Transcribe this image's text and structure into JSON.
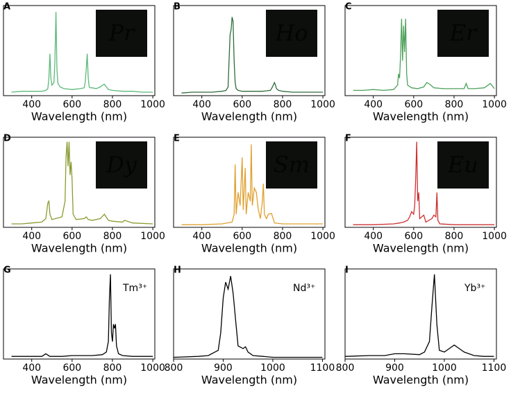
{
  "chart_data": [
    {
      "type": "line",
      "panel_label": "A",
      "inset_label": "Pr",
      "xlabel": "Wavelength (nm)",
      "color": "#5cb87a",
      "xlim": [
        260,
        1010
      ],
      "xticks": [
        400,
        600,
        800,
        1000
      ],
      "ylim": [
        0,
        100
      ],
      "x": [
        300,
        350,
        400,
        450,
        470,
        480,
        485,
        490,
        495,
        500,
        510,
        515,
        520,
        525,
        530,
        540,
        560,
        600,
        640,
        660,
        665,
        670,
        675,
        680,
        685,
        690,
        700,
        720,
        740,
        750,
        760,
        770,
        780,
        800,
        850,
        900,
        950,
        1000
      ],
      "values": [
        4,
        5,
        5,
        5,
        6,
        8,
        20,
        48,
        20,
        12,
        15,
        40,
        96,
        30,
        14,
        10,
        8,
        7,
        8,
        9,
        15,
        30,
        48,
        20,
        10,
        9,
        9,
        8,
        10,
        12,
        13,
        10,
        7,
        6,
        5,
        5,
        4,
        4
      ]
    },
    {
      "type": "line",
      "panel_label": "B",
      "inset_label": "Ho",
      "xlabel": "Wavelength (nm)",
      "color": "#2e6b3a",
      "xlim": [
        260,
        1010
      ],
      "xticks": [
        400,
        600,
        800,
        1000
      ],
      "ylim": [
        0,
        100
      ],
      "x": [
        300,
        350,
        400,
        450,
        500,
        520,
        530,
        535,
        540,
        545,
        550,
        555,
        560,
        565,
        570,
        580,
        600,
        650,
        700,
        740,
        750,
        760,
        765,
        770,
        780,
        800,
        850,
        900,
        950,
        1000
      ],
      "values": [
        3,
        4,
        4,
        4,
        5,
        6,
        10,
        40,
        70,
        75,
        90,
        85,
        40,
        15,
        8,
        6,
        5,
        5,
        5,
        6,
        10,
        15,
        12,
        8,
        6,
        5,
        4,
        4,
        4,
        4
      ]
    },
    {
      "type": "line",
      "panel_label": "C",
      "inset_label": "Er",
      "xlabel": "Wavelength (nm)",
      "color": "#4ca05a",
      "xlim": [
        260,
        1010
      ],
      "xticks": [
        400,
        600,
        800,
        1000
      ],
      "ylim": [
        0,
        100
      ],
      "x": [
        300,
        350,
        400,
        450,
        500,
        520,
        525,
        530,
        535,
        540,
        545,
        550,
        555,
        560,
        565,
        570,
        590,
        620,
        650,
        665,
        680,
        700,
        750,
        800,
        850,
        860,
        870,
        900,
        950,
        980,
        1000
      ],
      "values": [
        6,
        6,
        7,
        6,
        7,
        12,
        25,
        20,
        45,
        88,
        40,
        80,
        50,
        88,
        25,
        12,
        9,
        8,
        10,
        15,
        13,
        9,
        8,
        8,
        8,
        14,
        8,
        8,
        9,
        14,
        8
      ]
    },
    {
      "type": "line",
      "panel_label": "D",
      "inset_label": "Dy",
      "xlabel": "Wavelength (nm)",
      "color": "#8a9a30",
      "xlim": [
        260,
        1010
      ],
      "xticks": [
        400,
        600,
        800,
        1000
      ],
      "ylim": [
        0,
        100
      ],
      "x": [
        300,
        350,
        400,
        450,
        470,
        480,
        485,
        490,
        500,
        550,
        565,
        570,
        575,
        580,
        585,
        590,
        595,
        600,
        605,
        620,
        660,
        670,
        680,
        700,
        740,
        760,
        780,
        800,
        850,
        860,
        900,
        1000
      ],
      "values": [
        4,
        4,
        5,
        6,
        10,
        28,
        30,
        15,
        9,
        12,
        30,
        80,
        98,
        70,
        98,
        60,
        75,
        55,
        15,
        9,
        10,
        12,
        9,
        8,
        10,
        15,
        8,
        7,
        6,
        8,
        5,
        4
      ]
    },
    {
      "type": "line",
      "panel_label": "E",
      "inset_label": "Sm",
      "xlabel": "Wavelength (nm)",
      "color": "#e0a030",
      "xlim": [
        260,
        1010
      ],
      "xticks": [
        400,
        600,
        800,
        1000
      ],
      "ylim": [
        0,
        100
      ],
      "x": [
        300,
        400,
        500,
        550,
        560,
        565,
        570,
        580,
        590,
        600,
        605,
        615,
        620,
        630,
        640,
        645,
        650,
        660,
        670,
        680,
        690,
        700,
        705,
        710,
        720,
        730,
        745,
        760,
        800,
        900,
        1000
      ],
      "values": [
        3,
        3,
        4,
        6,
        15,
        72,
        15,
        40,
        25,
        80,
        20,
        68,
        15,
        40,
        30,
        95,
        25,
        45,
        40,
        20,
        10,
        30,
        50,
        15,
        10,
        15,
        16,
        5,
        4,
        4,
        4
      ]
    },
    {
      "type": "line",
      "panel_label": "F",
      "inset_label": "Eu",
      "xlabel": "Wavelength (nm)",
      "color": "#cc3030",
      "xlim": [
        260,
        1010
      ],
      "xticks": [
        400,
        600,
        800,
        1000
      ],
      "ylim": [
        0,
        100
      ],
      "x": [
        300,
        400,
        500,
        530,
        550,
        570,
        580,
        590,
        600,
        605,
        610,
        615,
        620,
        625,
        630,
        650,
        660,
        690,
        700,
        710,
        715,
        720,
        730,
        800,
        900,
        1000
      ],
      "values": [
        3,
        3,
        4,
        5,
        6,
        8,
        12,
        18,
        15,
        25,
        55,
        98,
        30,
        40,
        10,
        14,
        6,
        10,
        14,
        12,
        40,
        8,
        4,
        3,
        3,
        3
      ]
    },
    {
      "type": "line",
      "panel_label": "G",
      "annotation": "Tm³⁺",
      "xlabel": "Wavelength (nm)",
      "color": "#000000",
      "xlim": [
        260,
        1010
      ],
      "xticks": [
        400,
        600,
        800,
        1000
      ],
      "ylim": [
        0,
        100
      ],
      "x": [
        300,
        400,
        450,
        470,
        490,
        550,
        600,
        650,
        700,
        750,
        770,
        780,
        785,
        790,
        795,
        800,
        805,
        810,
        815,
        820,
        830,
        850,
        900,
        1000
      ],
      "values": [
        3,
        3,
        3,
        6,
        3,
        3,
        4,
        4,
        4,
        5,
        8,
        20,
        70,
        97,
        30,
        20,
        40,
        35,
        40,
        15,
        6,
        4,
        3,
        3
      ]
    },
    {
      "type": "line",
      "panel_label": "H",
      "annotation": "Nd³⁺",
      "xlabel": "Wavelength (nm)",
      "color": "#000000",
      "xlim": [
        800,
        1105
      ],
      "xticks": [
        800,
        900,
        1000,
        1100
      ],
      "ylim": [
        0,
        100
      ],
      "x": [
        800,
        850,
        870,
        890,
        895,
        900,
        905,
        910,
        915,
        920,
        925,
        930,
        940,
        945,
        950,
        960,
        980,
        1000,
        1050,
        1100
      ],
      "values": [
        2,
        3,
        4,
        10,
        30,
        70,
        88,
        80,
        95,
        75,
        45,
        15,
        12,
        14,
        8,
        4,
        3,
        2,
        2,
        2
      ]
    },
    {
      "type": "line",
      "panel_label": "I",
      "annotation": "Yb³⁺",
      "xlabel": "Wavelength (nm)",
      "color": "#000000",
      "xlim": [
        800,
        1105
      ],
      "xticks": [
        800,
        900,
        1000,
        1100
      ],
      "ylim": [
        0,
        100
      ],
      "x": [
        800,
        850,
        880,
        900,
        920,
        950,
        960,
        970,
        975,
        980,
        985,
        990,
        1000,
        1010,
        1020,
        1030,
        1040,
        1060,
        1080,
        1100
      ],
      "values": [
        3,
        4,
        4,
        6,
        6,
        5,
        8,
        20,
        60,
        97,
        40,
        10,
        8,
        12,
        16,
        12,
        8,
        4,
        3,
        3
      ]
    }
  ]
}
